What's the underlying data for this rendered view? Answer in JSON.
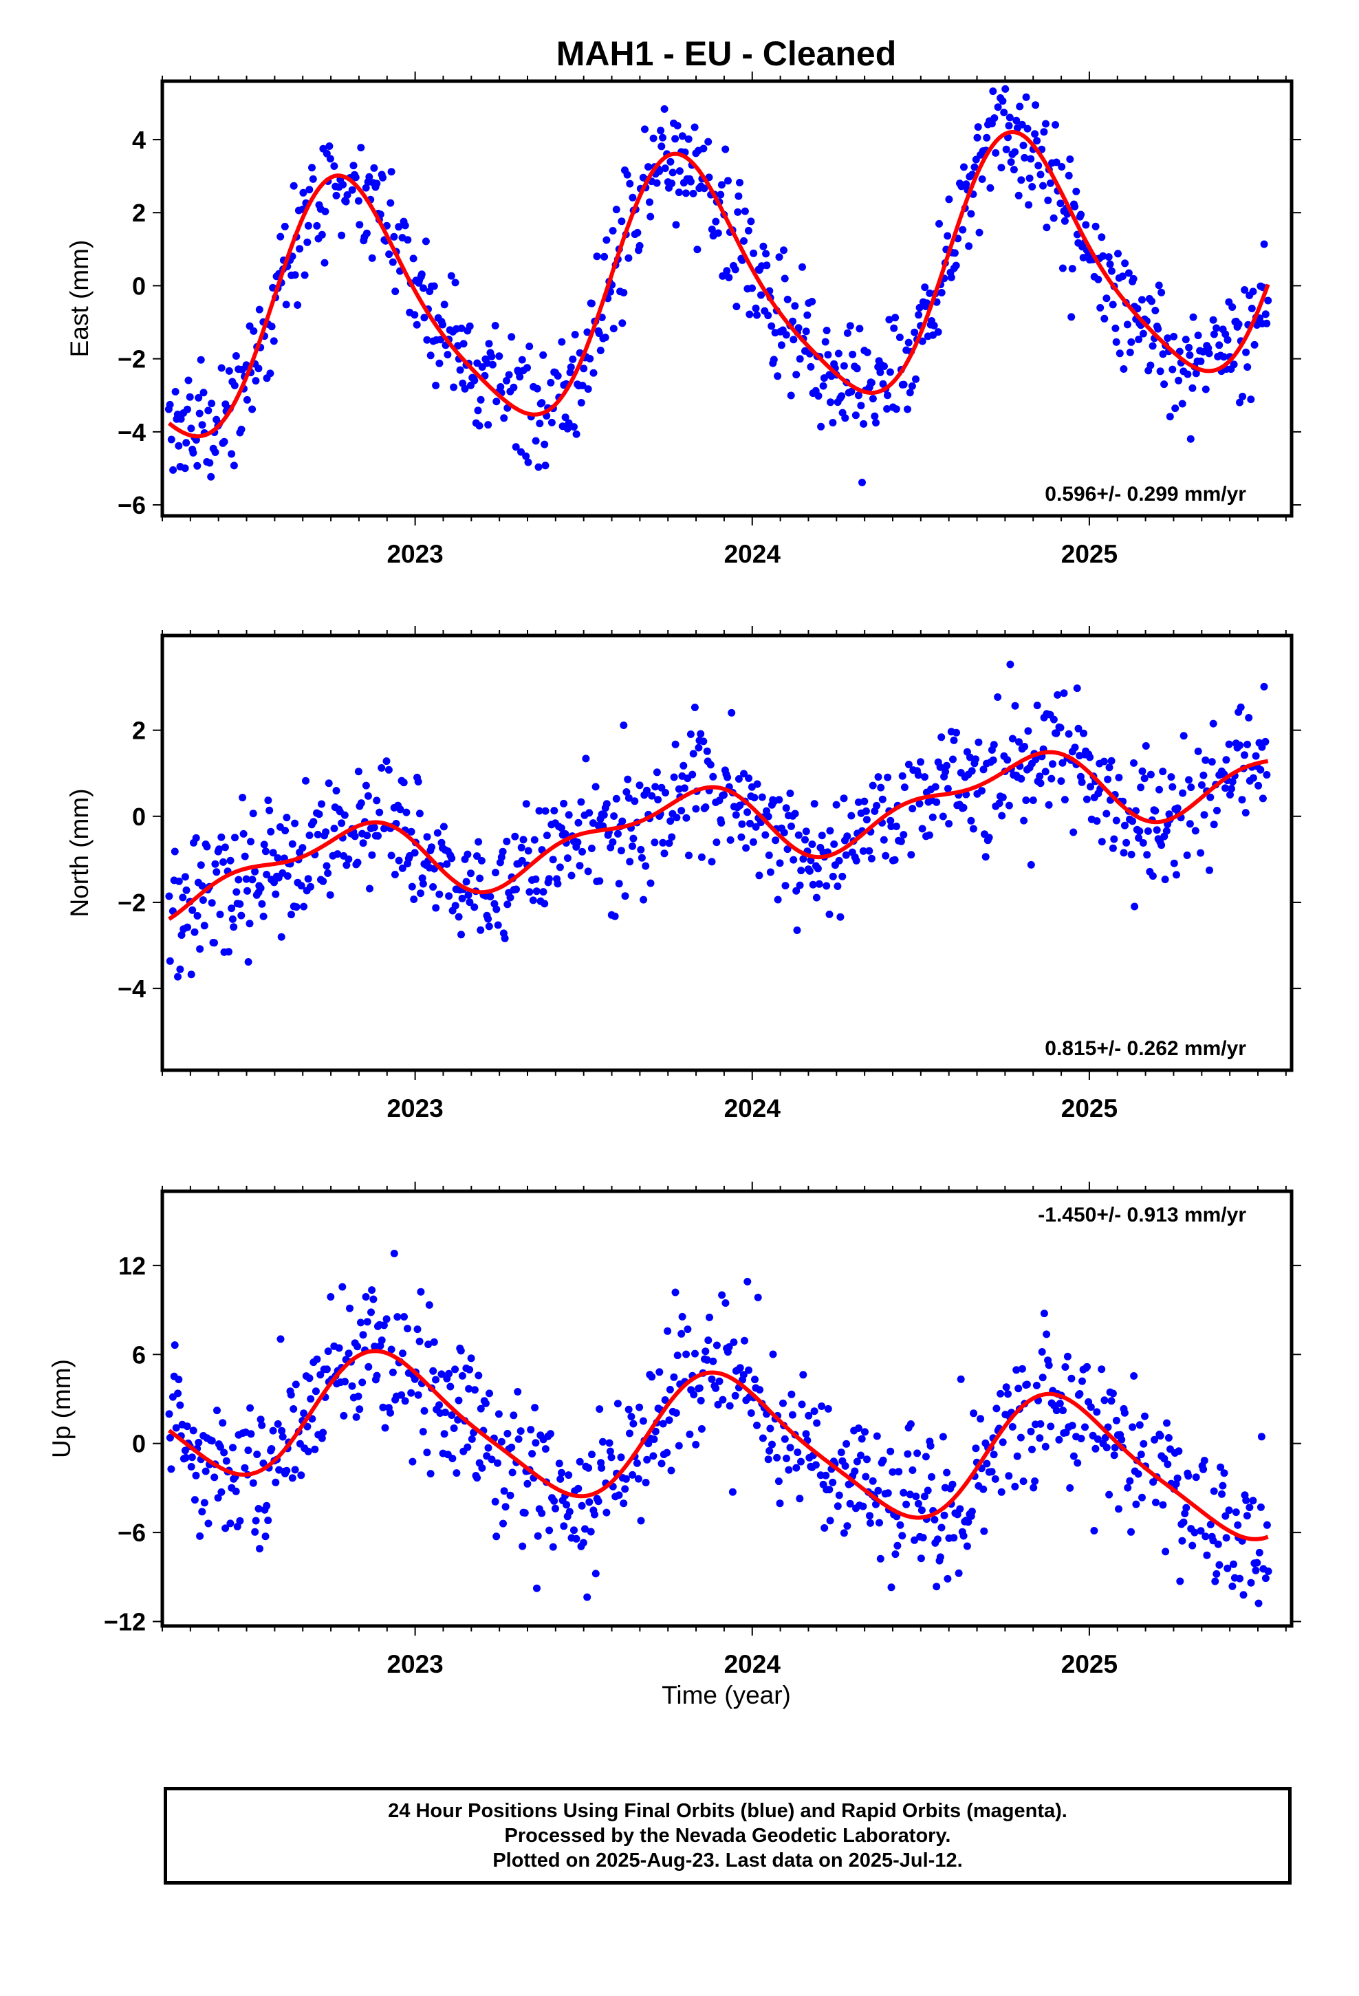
{
  "title": "MAH1  - EU - Cleaned",
  "xlabel": "Time (year)",
  "footer": {
    "line1": "24 Hour Positions Using Final Orbits (blue) and Rapid Orbits (magenta).",
    "line2": "Processed by the Nevada Geodetic Laboratory.",
    "line3": "Plotted on 2025-Aug-23. Last data on 2025-Jul-12."
  },
  "colors": {
    "points": "#0000ff",
    "fit": "#ff0000",
    "frame": "#000000"
  },
  "chart_data": [
    {
      "type": "scatter",
      "name": "east",
      "ylabel": "East (mm)",
      "rate_label": "0.596+/- 0.299 mm/yr",
      "rate_position": "bottom-right",
      "xlim": [
        2022.25,
        2025.6
      ],
      "ylim": [
        -6.3,
        5.6
      ],
      "xticks": [
        2023,
        2024,
        2025
      ],
      "yticks": [
        -6,
        -4,
        -2,
        0,
        2,
        4
      ],
      "fit": {
        "mean": 0.0,
        "trend": 0.596,
        "amp1": 3.3,
        "phase1": 0.55,
        "amp2": 0.6,
        "phase2": 0.1,
        "t0": 2024.0
      },
      "scatter_sd": 0.85,
      "x_start": 2022.27,
      "x_end": 2025.53,
      "grid": false
    },
    {
      "type": "scatter",
      "name": "north",
      "ylabel": "North (mm)",
      "rate_label": "0.815+/- 0.262 mm/yr",
      "rate_position": "bottom-right",
      "xlim": [
        2022.25,
        2025.6
      ],
      "ylim": [
        -5.9,
        4.2
      ],
      "xticks": [
        2023,
        2024,
        2025
      ],
      "yticks": [
        -4,
        -2,
        0,
        2
      ],
      "fit": {
        "mean": -0.1,
        "trend": 0.815,
        "amp1": 0.75,
        "phase1": 0.52,
        "amp2": 0.35,
        "phase2": 0.3,
        "t0": 2024.0
      },
      "scatter_sd": 0.75,
      "x_start": 2022.27,
      "x_end": 2025.53,
      "grid": false
    },
    {
      "type": "scatter",
      "name": "up",
      "ylabel": "Up (mm)",
      "rate_label": "-1.450+/- 0.913 mm/yr",
      "rate_position": "top-right",
      "xlim": [
        2022.25,
        2025.6
      ],
      "ylim": [
        -12.3,
        17.0
      ],
      "xticks": [
        2023,
        2024,
        2025
      ],
      "yticks": [
        -12,
        -6,
        0,
        6,
        12
      ],
      "fit": {
        "mean": 0.0,
        "trend": -1.45,
        "amp1": 4.2,
        "phase1": 0.68,
        "amp2": 0.8,
        "phase2": 0.2,
        "t0": 2024.0
      },
      "scatter_sd": 2.6,
      "x_start": 2022.27,
      "x_end": 2025.53,
      "grid": false
    }
  ]
}
